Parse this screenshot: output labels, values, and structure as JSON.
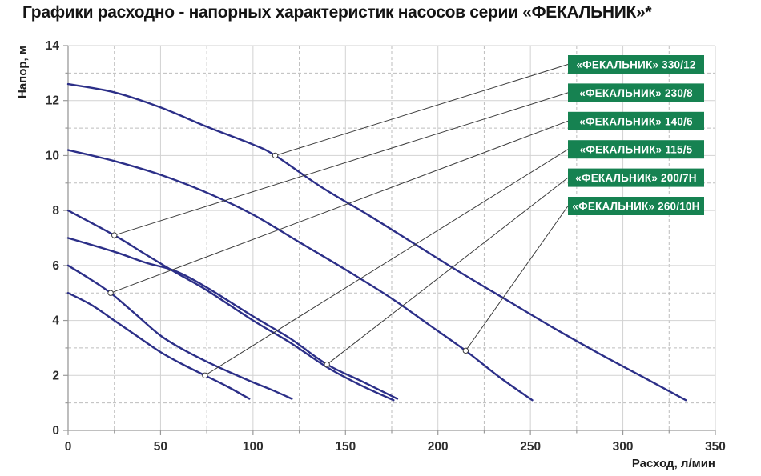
{
  "title": "Графики расходно - напорных характеристик насосов серии «ФЕКАЛЬНИК»*",
  "chart_data": {
    "type": "line",
    "title": "Графики расходно - напорных характеристик насосов серии «ФЕКАЛЬНИК»*",
    "xlabel": "Расход, л/мин",
    "ylabel": "Напор, м",
    "xlim": [
      0,
      350
    ],
    "ylim": [
      0,
      14
    ],
    "x_ticks": [
      0,
      50,
      100,
      150,
      200,
      250,
      300,
      350
    ],
    "y_ticks": [
      0,
      2,
      4,
      6,
      8,
      10,
      12,
      14
    ],
    "x_major_step": 50,
    "x_minor_step": 25,
    "y_major_step": 2,
    "y_minor_step": 1,
    "grid": "major solid, minor dashed",
    "legend_position": "top-right",
    "colors": {
      "curve": "#2c2f88",
      "legend_bg": "#168251",
      "legend_text": "#ffffff",
      "leader_line": "#3c3c3c",
      "grid_major": "#d2d2d2",
      "grid_minor": "#bdbdbd",
      "axis": "#9a9a9a",
      "tick_text": "#2e2e2e"
    },
    "series": [
      {
        "name": "«ФЕКАЛЬНИК» 330/12",
        "slug": "330-12",
        "points": [
          [
            0,
            12.6
          ],
          [
            25,
            12.3
          ],
          [
            50,
            11.75
          ],
          [
            75,
            11.05
          ],
          [
            100,
            10.4
          ],
          [
            112,
            10.0
          ],
          [
            137,
            8.85
          ],
          [
            162,
            7.85
          ],
          [
            187,
            6.8
          ],
          [
            212,
            5.75
          ],
          [
            237,
            4.75
          ],
          [
            262,
            3.75
          ],
          [
            287,
            2.8
          ],
          [
            312,
            1.9
          ],
          [
            334,
            1.1
          ]
        ],
        "callout_at": [
          112,
          10.0
        ]
      },
      {
        "name": "«ФЕКАЛЬНИК» 230/8",
        "slug": "230-8",
        "points": [
          [
            0,
            8.0
          ],
          [
            25,
            7.1
          ],
          [
            42,
            6.4
          ],
          [
            58,
            5.75
          ],
          [
            75,
            5.1
          ],
          [
            100,
            4.0
          ],
          [
            120,
            3.2
          ],
          [
            140,
            2.3
          ],
          [
            158,
            1.65
          ],
          [
            176,
            1.1
          ]
        ],
        "callout_at": [
          25,
          7.1
        ]
      },
      {
        "name": "«ФЕКАЛЬНИК» 140/6",
        "slug": "140-6",
        "points": [
          [
            0,
            6.0
          ],
          [
            12,
            5.5
          ],
          [
            23,
            5.0
          ],
          [
            37,
            4.2
          ],
          [
            50,
            3.45
          ],
          [
            62,
            2.95
          ],
          [
            75,
            2.5
          ],
          [
            88,
            2.1
          ],
          [
            100,
            1.75
          ],
          [
            111,
            1.45
          ],
          [
            121,
            1.15
          ]
        ],
        "callout_at": [
          23,
          5.0
        ]
      },
      {
        "name": "«ФЕКАЛЬНИК» 115/5",
        "slug": "115-5",
        "points": [
          [
            0,
            5.0
          ],
          [
            13,
            4.55
          ],
          [
            25,
            4.0
          ],
          [
            38,
            3.4
          ],
          [
            50,
            2.85
          ],
          [
            62,
            2.4
          ],
          [
            74,
            2.0
          ],
          [
            86,
            1.6
          ],
          [
            98,
            1.15
          ]
        ],
        "callout_at": [
          74,
          2.0
        ]
      },
      {
        "name": "«ФЕКАЛЬНИК» 200/7Н",
        "slug": "200-7n",
        "points": [
          [
            0,
            7.0
          ],
          [
            25,
            6.5
          ],
          [
            42,
            6.1
          ],
          [
            58,
            5.8
          ],
          [
            75,
            5.2
          ],
          [
            100,
            4.15
          ],
          [
            120,
            3.35
          ],
          [
            140,
            2.4
          ],
          [
            160,
            1.75
          ],
          [
            178,
            1.15
          ]
        ],
        "callout_at": [
          140,
          2.4
        ]
      },
      {
        "name": "«ФЕКАЛЬНИК» 260/10Н",
        "slug": "260-10n",
        "points": [
          [
            0,
            10.2
          ],
          [
            25,
            9.8
          ],
          [
            50,
            9.3
          ],
          [
            75,
            8.65
          ],
          [
            100,
            7.85
          ],
          [
            125,
            6.85
          ],
          [
            150,
            5.85
          ],
          [
            175,
            4.8
          ],
          [
            195,
            3.85
          ],
          [
            215,
            2.9
          ],
          [
            233,
            1.95
          ],
          [
            251,
            1.1
          ]
        ],
        "callout_at": [
          215,
          2.9
        ]
      }
    ]
  }
}
